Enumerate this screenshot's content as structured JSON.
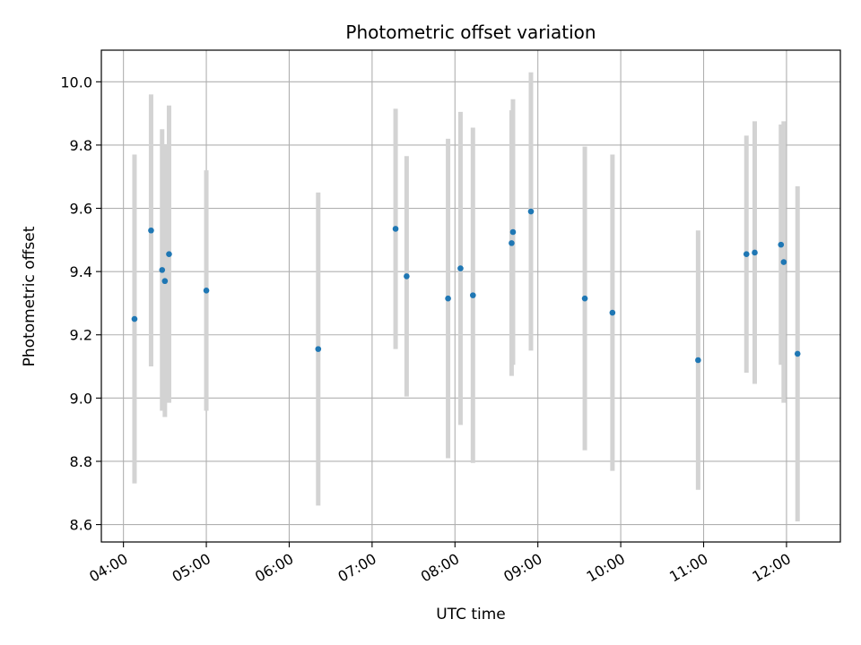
{
  "chart_data": {
    "type": "scatter",
    "title": "Photometric offset variation",
    "xlabel": "UTC time",
    "ylabel": "Photometric offset",
    "x_date": "2000-01-01",
    "xlim": [
      "03:44",
      "12:39"
    ],
    "ylim": [
      8.545,
      10.1
    ],
    "x_ticks": [
      "04:00",
      "05:00",
      "06:00",
      "07:00",
      "08:00",
      "09:00",
      "10:00",
      "11:00",
      "12:00"
    ],
    "y_ticks": [
      "8.6",
      "8.8",
      "9.0",
      "9.2",
      "9.4",
      "9.6",
      "9.8",
      "10.0"
    ],
    "grid": true,
    "colors": {
      "point": "#1f77b4",
      "errorbar": "#d3d3d3",
      "grid": "#b0b0b0"
    },
    "points": [
      {
        "x": "04:08",
        "y": 9.25,
        "err": 0.52
      },
      {
        "x": "04:20",
        "y": 9.53,
        "err": 0.43
      },
      {
        "x": "04:28",
        "y": 9.405,
        "err": 0.445
      },
      {
        "x": "04:30",
        "y": 9.37,
        "err": 0.43
      },
      {
        "x": "04:33",
        "y": 9.455,
        "err": 0.47
      },
      {
        "x": "05:00",
        "y": 9.34,
        "err": 0.38
      },
      {
        "x": "06:21",
        "y": 9.155,
        "err": 0.495
      },
      {
        "x": "07:17",
        "y": 9.535,
        "err": 0.38
      },
      {
        "x": "07:25",
        "y": 9.385,
        "err": 0.38
      },
      {
        "x": "07:55",
        "y": 9.315,
        "err": 0.505
      },
      {
        "x": "08:04",
        "y": 9.41,
        "err": 0.495
      },
      {
        "x": "08:13",
        "y": 9.325,
        "err": 0.53
      },
      {
        "x": "08:41",
        "y": 9.49,
        "err": 0.42
      },
      {
        "x": "08:42",
        "y": 9.525,
        "err": 0.42
      },
      {
        "x": "08:55",
        "y": 9.59,
        "err": 0.44
      },
      {
        "x": "09:34",
        "y": 9.315,
        "err": 0.48
      },
      {
        "x": "09:54",
        "y": 9.27,
        "err": 0.5
      },
      {
        "x": "10:56",
        "y": 9.12,
        "err": 0.41
      },
      {
        "x": "11:31",
        "y": 9.455,
        "err": 0.375
      },
      {
        "x": "11:37",
        "y": 9.46,
        "err": 0.415
      },
      {
        "x": "11:56",
        "y": 9.485,
        "err": 0.38
      },
      {
        "x": "11:58",
        "y": 9.43,
        "err": 0.445
      },
      {
        "x": "12:08",
        "y": 9.14,
        "err": 0.53
      }
    ]
  }
}
